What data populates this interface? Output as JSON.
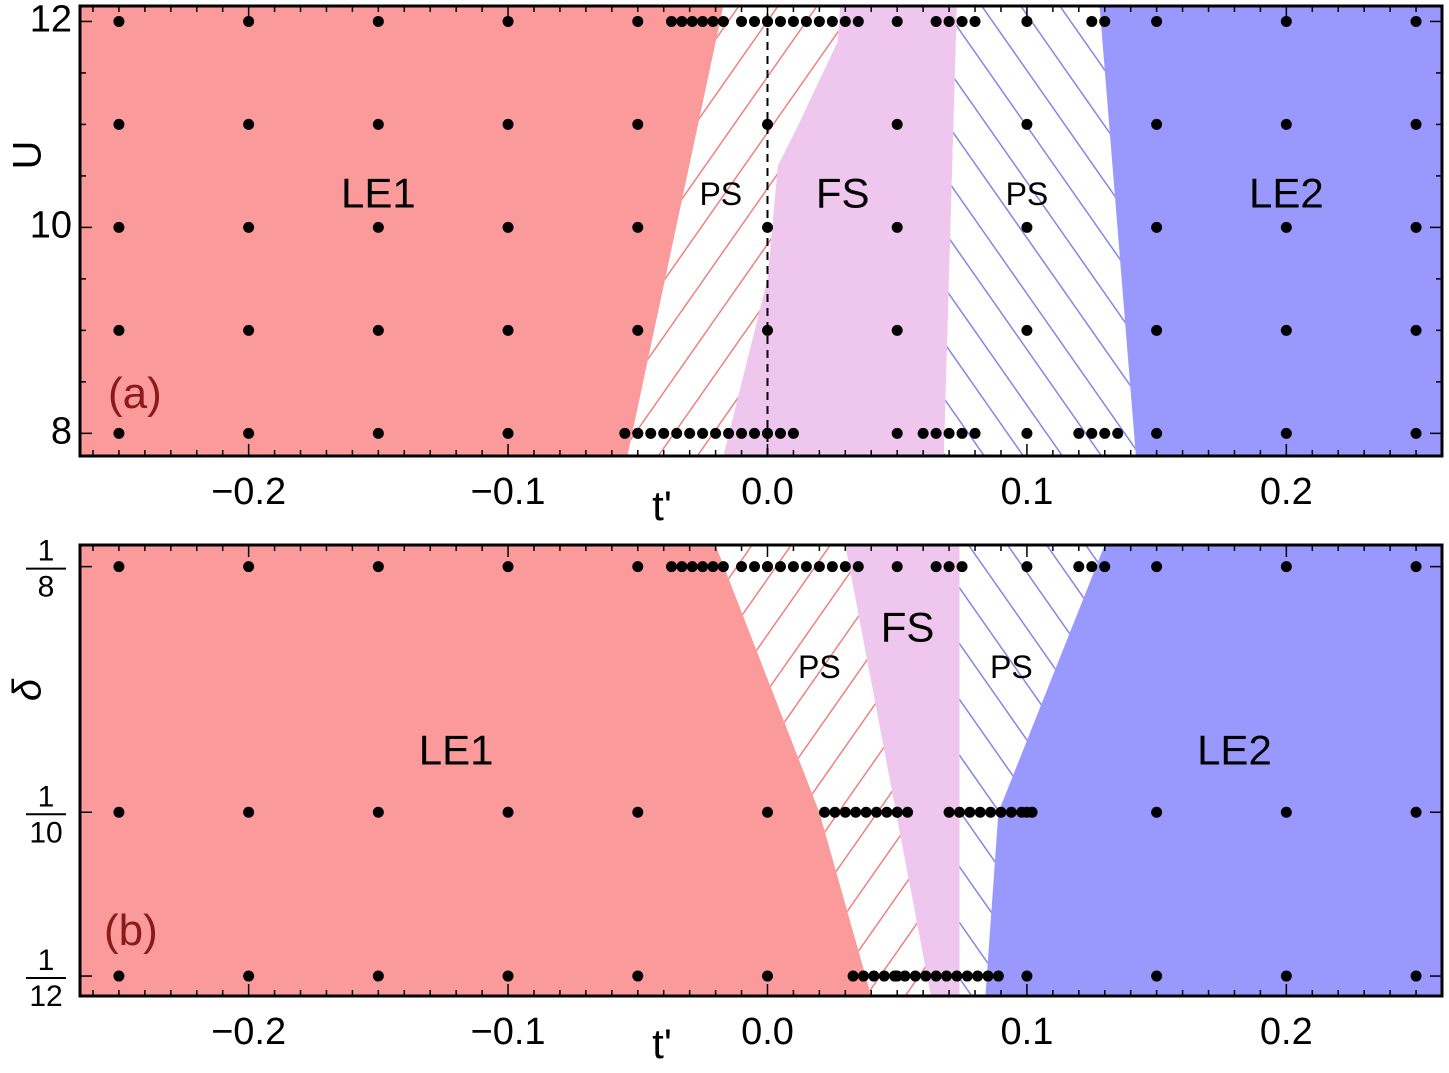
{
  "chart_data": [
    {
      "type": "scatter",
      "panel_label": "(a)",
      "xlabel": "t'",
      "ylabel": "U",
      "xlim": [
        -0.265,
        0.26
      ],
      "ylim": [
        7.78,
        12.15
      ],
      "xticks": [
        -0.2,
        -0.1,
        0.0,
        0.1,
        0.2
      ],
      "xtick_labels": [
        "−0.2",
        "−0.1",
        "0.0",
        "0.1",
        "0.2"
      ],
      "yticks": [
        8,
        10,
        12
      ],
      "ytick_labels": [
        "8",
        "10",
        "12"
      ],
      "regions": [
        {
          "label": "LE1",
          "fill": "solid",
          "color": "#fb9a9a",
          "label_at": [
            -0.15,
            10.3
          ],
          "polygon": [
            [
              -0.265,
              7.78
            ],
            [
              -0.054,
              7.78
            ],
            [
              -0.017,
              12.15
            ],
            [
              -0.265,
              12.15
            ]
          ]
        },
        {
          "label": "PS",
          "fill": "hatched",
          "color": "#f08080",
          "label_at": [
            -0.018,
            10.3
          ],
          "polygon": [
            [
              -0.054,
              7.78
            ],
            [
              -0.017,
              7.78
            ],
            [
              0.0,
              9.5
            ],
            [
              0.004,
              10.6
            ],
            [
              0.012,
              11.0
            ],
            [
              0.027,
              11.8
            ],
            [
              0.028,
              12.15
            ],
            [
              -0.017,
              12.15
            ]
          ]
        },
        {
          "label": "FS",
          "fill": "solid",
          "color": "#efc7ee",
          "label_at": [
            0.029,
            10.3
          ],
          "polygon": [
            [
              -0.017,
              7.78
            ],
            [
              0.068,
              7.78
            ],
            [
              0.073,
              12.15
            ],
            [
              0.028,
              12.15
            ],
            [
              0.027,
              11.8
            ],
            [
              0.012,
              11.0
            ],
            [
              0.004,
              10.6
            ],
            [
              0.0,
              9.5
            ]
          ]
        },
        {
          "label": "PS",
          "fill": "hatched",
          "color": "#8585e8",
          "label_at": [
            0.1,
            10.3
          ],
          "polygon": [
            [
              0.068,
              7.78
            ],
            [
              0.142,
              7.78
            ],
            [
              0.128,
              12.15
            ],
            [
              0.073,
              12.15
            ]
          ]
        },
        {
          "label": "LE2",
          "fill": "solid",
          "color": "#9999fd",
          "label_at": [
            0.2,
            10.3
          ],
          "polygon": [
            [
              0.142,
              7.78
            ],
            [
              0.26,
              7.78
            ],
            [
              0.26,
              12.15
            ],
            [
              0.128,
              12.15
            ]
          ]
        }
      ],
      "reference_line": {
        "style": "dashed",
        "x": 0.0,
        "y_from": 7.78,
        "y_to": 12.15
      },
      "points": {
        "grid_x": [
          -0.25,
          -0.2,
          -0.15,
          -0.1,
          -0.05,
          0.0,
          0.05,
          0.1,
          0.15,
          0.2,
          0.25
        ],
        "grid_y": [
          8,
          9,
          10,
          11,
          12
        ],
        "dense_rows": [
          {
            "y": 8,
            "x": [
              -0.055,
              -0.05,
              -0.045,
              -0.04,
              -0.035,
              -0.03,
              -0.025,
              -0.02,
              -0.015,
              -0.01,
              -0.005,
              0.0,
              0.005,
              0.01,
              0.06,
              0.065,
              0.07,
              0.075,
              0.08,
              0.12,
              0.125,
              0.13,
              0.135
            ]
          },
          {
            "y": 12,
            "x": [
              -0.037,
              -0.033,
              -0.029,
              -0.025,
              -0.021,
              -0.017,
              -0.01,
              -0.005,
              0.0,
              0.005,
              0.01,
              0.015,
              0.02,
              0.025,
              0.03,
              0.035,
              0.065,
              0.07,
              0.075,
              0.08,
              0.125,
              0.13
            ]
          }
        ]
      }
    },
    {
      "type": "scatter",
      "panel_label": "(b)",
      "xlabel": "t'",
      "ylabel": "δ",
      "xlim": [
        -0.265,
        0.26
      ],
      "ylim": [
        0.0813,
        0.1272
      ],
      "xticks": [
        -0.2,
        -0.1,
        0.0,
        0.1,
        0.2
      ],
      "xtick_labels": [
        "−0.2",
        "−0.1",
        "0.0",
        "0.1",
        "0.2"
      ],
      "yticks": [
        0.08333,
        0.1,
        0.125
      ],
      "ytick_labels": [
        [
          "1",
          "12"
        ],
        [
          "1",
          "10"
        ],
        [
          "1",
          "8"
        ]
      ],
      "regions": [
        {
          "label": "LE1",
          "fill": "solid",
          "color": "#fb9a9a",
          "label_at": [
            -0.12,
            0.106
          ],
          "polygon": [
            [
              -0.265,
              0.0813
            ],
            [
              0.04,
              0.0813
            ],
            [
              0.02,
              0.1
            ],
            [
              -0.02,
              0.1272
            ],
            [
              -0.265,
              0.1272
            ]
          ]
        },
        {
          "label": "PS",
          "fill": "hatched",
          "color": "#f08080",
          "label_at": [
            0.02,
            0.1145
          ],
          "polygon": [
            [
              0.04,
              0.0813
            ],
            [
              0.063,
              0.0813
            ],
            [
              0.03,
              0.1272
            ],
            [
              -0.02,
              0.1272
            ],
            [
              0.02,
              0.1
            ]
          ]
        },
        {
          "label": "FS",
          "fill": "solid",
          "color": "#efc7ee",
          "label_at": [
            0.054,
            0.1185
          ],
          "polygon": [
            [
              0.063,
              0.0813
            ],
            [
              0.074,
              0.0813
            ],
            [
              0.074,
              0.1272
            ],
            [
              0.03,
              0.1272
            ]
          ]
        },
        {
          "label": "PS",
          "fill": "hatched",
          "color": "#8585e8",
          "label_at": [
            0.094,
            0.1145
          ],
          "polygon": [
            [
              0.074,
              0.0813
            ],
            [
              0.084,
              0.0813
            ],
            [
              0.089,
              0.1
            ],
            [
              0.13,
              0.1272
            ],
            [
              0.074,
              0.1272
            ]
          ]
        },
        {
          "label": "LE2",
          "fill": "solid",
          "color": "#9999fd",
          "label_at": [
            0.18,
            0.106
          ],
          "polygon": [
            [
              0.084,
              0.0813
            ],
            [
              0.26,
              0.0813
            ],
            [
              0.26,
              0.1272
            ],
            [
              0.13,
              0.1272
            ],
            [
              0.089,
              0.1
            ]
          ]
        }
      ],
      "points": {
        "grid_x": [
          -0.25,
          -0.2,
          -0.15,
          -0.1,
          -0.05,
          0.0,
          0.05,
          0.1,
          0.15,
          0.2,
          0.25
        ],
        "grid_y": [
          0.08333,
          0.1,
          0.125
        ],
        "dense_rows": [
          {
            "y": 0.125,
            "x": [
              -0.037,
              -0.033,
              -0.029,
              -0.025,
              -0.021,
              -0.017,
              -0.01,
              -0.005,
              0.0,
              0.005,
              0.01,
              0.015,
              0.02,
              0.025,
              0.03,
              0.035,
              0.065,
              0.07,
              0.075,
              0.12,
              0.125,
              0.13
            ]
          },
          {
            "y": 0.1,
            "x": [
              0.022,
              0.026,
              0.03,
              0.034,
              0.038,
              0.042,
              0.046,
              0.05,
              0.054,
              0.07,
              0.074,
              0.078,
              0.082,
              0.086,
              0.09,
              0.094,
              0.098,
              0.102
            ]
          },
          {
            "y": 0.08333,
            "x": [
              0.033,
              0.037,
              0.041,
              0.045,
              0.049,
              0.053,
              0.057,
              0.061,
              0.065,
              0.069,
              0.073,
              0.077,
              0.081,
              0.085,
              0.089
            ]
          }
        ]
      }
    }
  ]
}
